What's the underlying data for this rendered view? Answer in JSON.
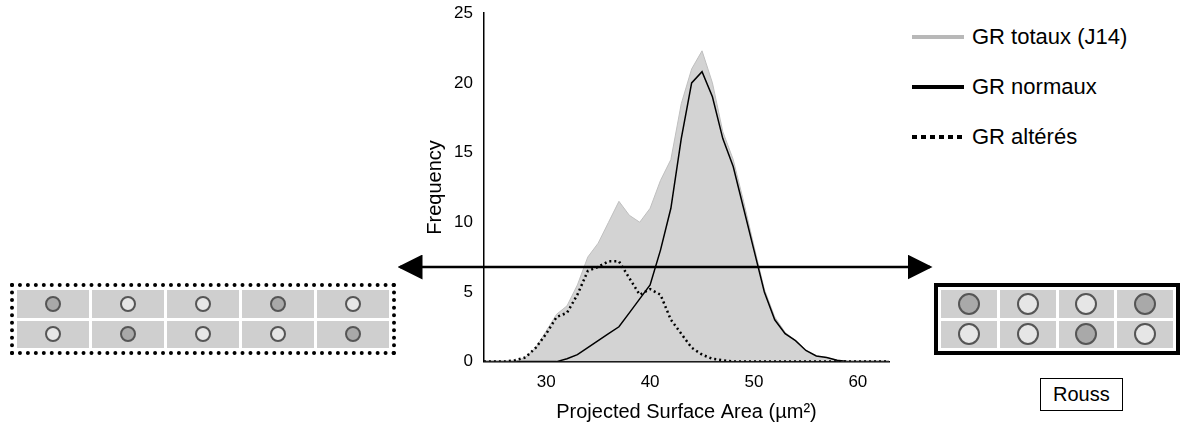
{
  "chart_data": {
    "type": "line",
    "x_label": "Projected Surface Area (µm²)",
    "y_label": "Frequency",
    "x": [
      24,
      25,
      26,
      27,
      28,
      29,
      30,
      31,
      32,
      33,
      34,
      35,
      36,
      37,
      38,
      39,
      40,
      41,
      42,
      43,
      44,
      45,
      46,
      47,
      48,
      49,
      50,
      51,
      52,
      53,
      54,
      55,
      56,
      57,
      58,
      59,
      60,
      61,
      62,
      63
    ],
    "series": [
      {
        "name": "GR totaux (J14)",
        "type": "area",
        "color": "#d3d3d3",
        "line_style": "solid",
        "values": [
          0,
          0,
          0,
          0,
          0.3,
          1,
          2.2,
          3.4,
          4,
          5.5,
          7.5,
          8.5,
          10,
          11.5,
          10.5,
          10,
          11,
          13,
          14.5,
          18.5,
          21,
          22.3,
          20,
          16.5,
          14.5,
          11.5,
          8.3,
          5.2,
          3.2,
          2.1,
          1.5,
          0.8,
          0.4,
          0.3,
          0.1,
          0,
          0,
          0,
          0,
          0
        ]
      },
      {
        "name": "GR normaux",
        "type": "line",
        "color": "#000000",
        "line_style": "solid",
        "values": [
          0,
          0,
          0,
          0,
          0,
          0,
          0,
          0,
          0.2,
          0.5,
          1,
          1.5,
          2,
          2.5,
          3.5,
          4.5,
          5.5,
          8,
          11,
          16,
          20,
          20.8,
          19,
          16,
          14,
          11,
          8,
          5,
          3,
          2,
          1.5,
          0.8,
          0.4,
          0.3,
          0.1,
          0,
          0,
          0,
          0,
          0
        ]
      },
      {
        "name": "GR altérés",
        "type": "line",
        "color": "#000000",
        "line_style": "dotted",
        "values": [
          0,
          0,
          0,
          0.1,
          0.3,
          1,
          2,
          3.2,
          3.5,
          4.8,
          6.5,
          6.8,
          7.2,
          7.2,
          6,
          4.8,
          5.2,
          4.8,
          3,
          2,
          1,
          0.5,
          0.2,
          0.1,
          0,
          0,
          0,
          0,
          0,
          0,
          0,
          0,
          0,
          0,
          0,
          0,
          0,
          0,
          0,
          0
        ]
      }
    ],
    "xlim": [
      24,
      63
    ],
    "xticks": [
      30,
      40,
      50,
      60
    ],
    "ylim": [
      0,
      25
    ],
    "yticks": [
      0,
      5,
      10,
      15,
      20,
      25
    ],
    "grid": false,
    "legend": "right",
    "annotations": [
      "Rouss"
    ]
  }
}
